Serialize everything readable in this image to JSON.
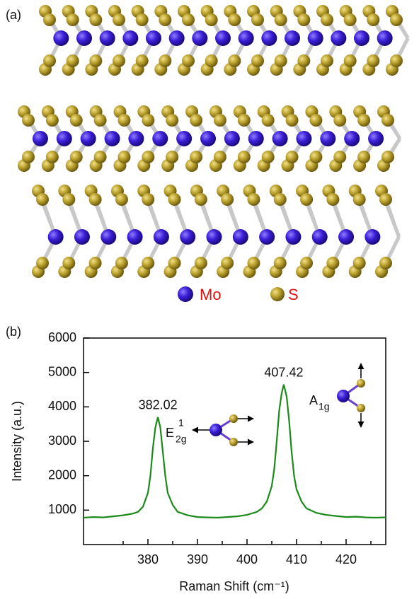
{
  "panel_labels": [
    "(a)",
    "(b)"
  ],
  "legend": [
    {
      "name": "Mo",
      "color": "#3b1fd6"
    },
    {
      "name": "S",
      "color": "#bba22e"
    }
  ],
  "chart_data": {
    "type": "line",
    "x_label": "Raman Shift (cm⁻¹)",
    "y_label": "Intensity (a.u.)",
    "color": "#1b8a1b",
    "x": [
      367,
      369,
      371,
      373,
      375,
      377,
      378,
      379,
      380,
      380.5,
      381,
      381.5,
      382.02,
      382.5,
      383,
      383.5,
      384,
      385,
      386,
      388,
      390,
      392,
      394,
      396,
      398,
      400,
      402,
      403,
      404,
      405,
      405.5,
      406,
      406.5,
      407,
      407.42,
      408,
      408.5,
      409,
      409.5,
      410,
      411,
      412,
      414,
      416,
      418,
      420,
      422,
      424,
      426,
      428
    ],
    "values": [
      780,
      800,
      790,
      820,
      850,
      900,
      950,
      1100,
      1500,
      2000,
      2800,
      3400,
      3700,
      3400,
      2700,
      2000,
      1500,
      1150,
      950,
      850,
      800,
      790,
      780,
      800,
      820,
      860,
      950,
      1050,
      1250,
      1700,
      2200,
      3000,
      3900,
      4400,
      4650,
      4300,
      3600,
      2700,
      2000,
      1600,
      1250,
      1050,
      920,
      860,
      830,
      800,
      810,
      790,
      780,
      790
    ],
    "xlim": [
      367,
      428
    ],
    "ylim": [
      0,
      6000
    ],
    "xticks": [
      380,
      390,
      400,
      410,
      420
    ],
    "xminorticks": [
      375,
      385,
      395,
      405,
      415,
      425
    ],
    "yticks": [
      1000,
      2000,
      3000,
      4000,
      5000,
      6000
    ],
    "peaks": [
      382.02,
      407.42
    ],
    "modes": [
      {
        "symbol": "E",
        "sub": "2g",
        "sup": "1"
      },
      {
        "symbol": "A",
        "sub": "1g"
      }
    ]
  }
}
